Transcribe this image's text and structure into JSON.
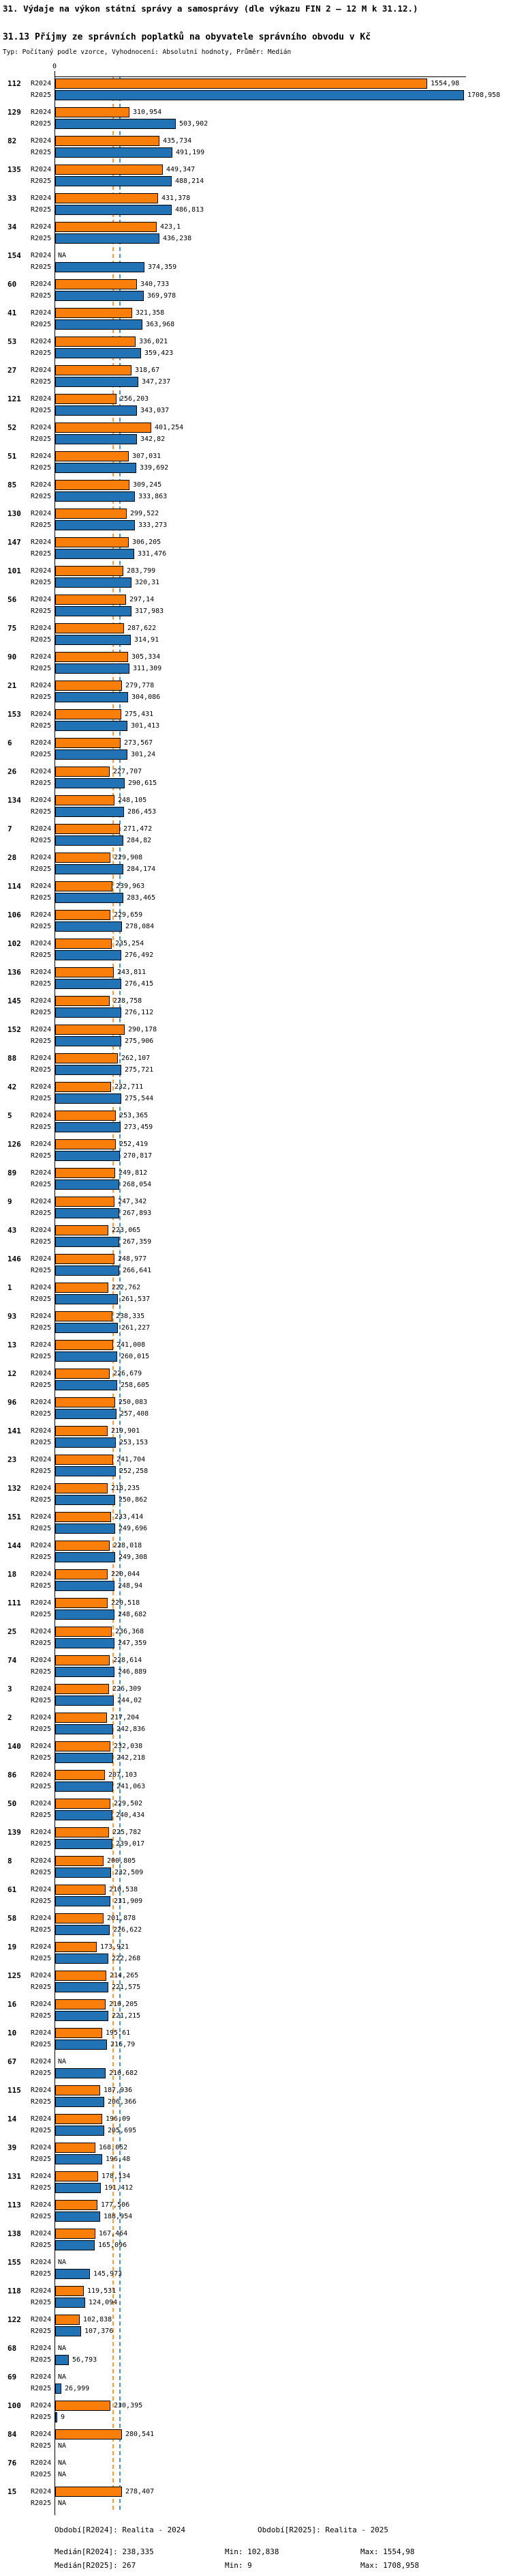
{
  "title": "31. Výdaje na výkon státní správy a samosprávy (dle výkazu FIN 2 – 12 M k 31.12.)",
  "subtitle": "31.13 Příjmy ze správních poplatků na obyvatele správního obvodu v Kč",
  "meta": "Typ: Počítaný podle vzorce, Vyhodnocení: Absolutní hodnoty, Průměr: Medián",
  "axis": {
    "zero_label": "0"
  },
  "colors": {
    "bar_2024": "#fa7e0a",
    "bar_2025": "#2273b5",
    "median_2024_line": "#ff9933",
    "median_2025_line": "#4d94c4",
    "bar_border": "#000000"
  },
  "legend": {
    "period_2024": "Období[R2024]: Realita - 2024",
    "period_2025": "Období[R2025]: Realita - 2025",
    "median_2024": "Medián[R2024]: 238,335",
    "min_2024": "Min: 102,838",
    "max_2024": "Max: 1554,98",
    "median_2025": "Medián[R2025]: 267",
    "min_2025": "Min: 9",
    "max_2025": "Max: 1708,958"
  },
  "chart_data": {
    "type": "bar",
    "orientation": "horizontal",
    "series": [
      "R2024",
      "R2025"
    ],
    "series_labels": {
      "r2024": "R2024",
      "r2025": "R2025"
    },
    "na_label": "NA",
    "x_axis": {
      "min": 0,
      "max": 1718,
      "shown_tick": 0,
      "grid": false
    },
    "medians": {
      "r2024": 238.335,
      "r2025": 267
    },
    "legend_position": "bottom",
    "groups": [
      {
        "id": "112",
        "r2024": "1554,98",
        "r2025": "1708,958"
      },
      {
        "id": "129",
        "r2024": "310,954",
        "r2025": "503,902"
      },
      {
        "id": "82",
        "r2024": "435,734",
        "r2025": "491,199"
      },
      {
        "id": "135",
        "r2024": "449,347",
        "r2025": "488,214"
      },
      {
        "id": "33",
        "r2024": "431,378",
        "r2025": "486,813"
      },
      {
        "id": "34",
        "r2024": "423,1",
        "r2025": "436,238"
      },
      {
        "id": "154",
        "r2024": "NA",
        "r2025": "374,359"
      },
      {
        "id": "60",
        "r2024": "340,733",
        "r2025": "369,978"
      },
      {
        "id": "41",
        "r2024": "321,358",
        "r2025": "363,968"
      },
      {
        "id": "53",
        "r2024": "336,021",
        "r2025": "359,423"
      },
      {
        "id": "27",
        "r2024": "318,67",
        "r2025": "347,237"
      },
      {
        "id": "121",
        "r2024": "256,203",
        "r2025": "343,037"
      },
      {
        "id": "52",
        "r2024": "401,254",
        "r2025": "342,82"
      },
      {
        "id": "51",
        "r2024": "307,031",
        "r2025": "339,692"
      },
      {
        "id": "85",
        "r2024": "309,245",
        "r2025": "333,863"
      },
      {
        "id": "130",
        "r2024": "299,522",
        "r2025": "333,273"
      },
      {
        "id": "147",
        "r2024": "306,205",
        "r2025": "331,476"
      },
      {
        "id": "101",
        "r2024": "283,799",
        "r2025": "320,31"
      },
      {
        "id": "56",
        "r2024": "297,14",
        "r2025": "317,983"
      },
      {
        "id": "75",
        "r2024": "287,622",
        "r2025": "314,91"
      },
      {
        "id": "90",
        "r2024": "305,334",
        "r2025": "311,309"
      },
      {
        "id": "21",
        "r2024": "279,778",
        "r2025": "304,086"
      },
      {
        "id": "153",
        "r2024": "275,431",
        "r2025": "301,413"
      },
      {
        "id": "6",
        "r2024": "273,567",
        "r2025": "301,24"
      },
      {
        "id": "26",
        "r2024": "227,707",
        "r2025": "290,615"
      },
      {
        "id": "134",
        "r2024": "248,105",
        "r2025": "286,453"
      },
      {
        "id": "7",
        "r2024": "271,472",
        "r2025": "284,82"
      },
      {
        "id": "28",
        "r2024": "229,908",
        "r2025": "284,174"
      },
      {
        "id": "114",
        "r2024": "239,963",
        "r2025": "283,465"
      },
      {
        "id": "106",
        "r2024": "229,659",
        "r2025": "278,084"
      },
      {
        "id": "102",
        "r2024": "235,254",
        "r2025": "276,492"
      },
      {
        "id": "136",
        "r2024": "243,811",
        "r2025": "276,415"
      },
      {
        "id": "145",
        "r2024": "228,758",
        "r2025": "276,112"
      },
      {
        "id": "152",
        "r2024": "290,178",
        "r2025": "275,906"
      },
      {
        "id": "88",
        "r2024": "262,107",
        "r2025": "275,721"
      },
      {
        "id": "42",
        "r2024": "232,711",
        "r2025": "275,544"
      },
      {
        "id": "5",
        "r2024": "253,365",
        "r2025": "273,459"
      },
      {
        "id": "126",
        "r2024": "252,419",
        "r2025": "270,817"
      },
      {
        "id": "89",
        "r2024": "249,812",
        "r2025": "268,054"
      },
      {
        "id": "9",
        "r2024": "247,342",
        "r2025": "267,893"
      },
      {
        "id": "43",
        "r2024": "223,065",
        "r2025": "267,359"
      },
      {
        "id": "146",
        "r2024": "248,977",
        "r2025": "266,641"
      },
      {
        "id": "1",
        "r2024": "222,762",
        "r2025": "261,537"
      },
      {
        "id": "93",
        "r2024": "238,335",
        "r2025": "261,227"
      },
      {
        "id": "13",
        "r2024": "241,008",
        "r2025": "260,015"
      },
      {
        "id": "12",
        "r2024": "226,679",
        "r2025": "258,605"
      },
      {
        "id": "96",
        "r2024": "250,083",
        "r2025": "257,408"
      },
      {
        "id": "141",
        "r2024": "219,901",
        "r2025": "253,153"
      },
      {
        "id": "23",
        "r2024": "241,704",
        "r2025": "252,258"
      },
      {
        "id": "132",
        "r2024": "218,235",
        "r2025": "250,862"
      },
      {
        "id": "151",
        "r2024": "233,414",
        "r2025": "249,696"
      },
      {
        "id": "144",
        "r2024": "228,018",
        "r2025": "249,308"
      },
      {
        "id": "18",
        "r2024": "220,044",
        "r2025": "248,94"
      },
      {
        "id": "111",
        "r2024": "220,518",
        "r2025": "248,682"
      },
      {
        "id": "25",
        "r2024": "236,368",
        "r2025": "247,359"
      },
      {
        "id": "74",
        "r2024": "228,614",
        "r2025": "246,889"
      },
      {
        "id": "3",
        "r2024": "226,309",
        "r2025": "244,02"
      },
      {
        "id": "2",
        "r2024": "217,204",
        "r2025": "242,836"
      },
      {
        "id": "140",
        "r2024": "232,038",
        "r2025": "242,218"
      },
      {
        "id": "86",
        "r2024": "207,103",
        "r2025": "241,063"
      },
      {
        "id": "50",
        "r2024": "229,502",
        "r2025": "240,434"
      },
      {
        "id": "139",
        "r2024": "225,782",
        "r2025": "239,017"
      },
      {
        "id": "8",
        "r2024": "200,805",
        "r2025": "232,509"
      },
      {
        "id": "61",
        "r2024": "210,538",
        "r2025": "231,909"
      },
      {
        "id": "58",
        "r2024": "201,878",
        "r2025": "226,622"
      },
      {
        "id": "19",
        "r2024": "173,921",
        "r2025": "222,268"
      },
      {
        "id": "125",
        "r2024": "214,265",
        "r2025": "221,575"
      },
      {
        "id": "16",
        "r2024": "210,205",
        "r2025": "221,215"
      },
      {
        "id": "10",
        "r2024": "195,61",
        "r2025": "216,79"
      },
      {
        "id": "67",
        "r2024": "NA",
        "r2025": "210,682"
      },
      {
        "id": "115",
        "r2024": "187,936",
        "r2025": "206,366"
      },
      {
        "id": "14",
        "r2024": "196,09",
        "r2025": "205,695"
      },
      {
        "id": "39",
        "r2024": "168,052",
        "r2025": "196,48"
      },
      {
        "id": "131",
        "r2024": "178,134",
        "r2025": "191,412"
      },
      {
        "id": "113",
        "r2024": "177,506",
        "r2025": "188,954"
      },
      {
        "id": "138",
        "r2024": "167,464",
        "r2025": "165,096"
      },
      {
        "id": "155",
        "r2024": "NA",
        "r2025": "145,973"
      },
      {
        "id": "118",
        "r2024": "119,531",
        "r2025": "124,094"
      },
      {
        "id": "122",
        "r2024": "102,838",
        "r2025": "107,376"
      },
      {
        "id": "68",
        "r2024": "NA",
        "r2025": "56,793"
      },
      {
        "id": "69",
        "r2024": "NA",
        "r2025": "26,999"
      },
      {
        "id": "100",
        "r2024": "230,395",
        "r2025": "9"
      },
      {
        "id": "84",
        "r2024": "280,541",
        "r2025": "NA"
      },
      {
        "id": "76",
        "r2024": "NA",
        "r2025": "NA"
      },
      {
        "id": "15",
        "r2024": "278,407",
        "r2025": "NA"
      }
    ]
  }
}
